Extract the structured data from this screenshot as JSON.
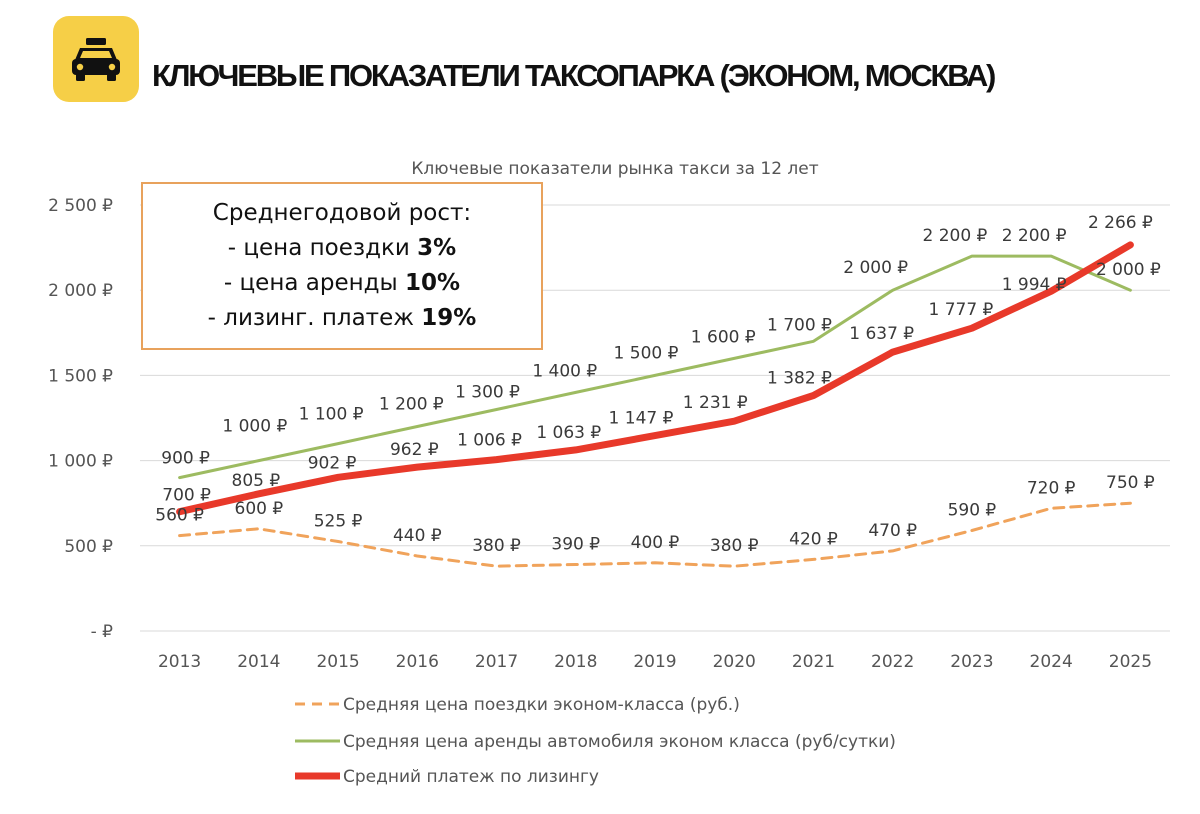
{
  "header": {
    "title": "КЛЮЧЕВЫЕ ПОКАЗАТЕЛИ ТАКСОПАРКА (ЭКОНОМ, МОСКВА)",
    "logo_icon": "taxi-car-icon",
    "logo_color": "#F6CF47"
  },
  "callout": {
    "heading": "Среднегодовой рост:",
    "lines": [
      {
        "label": "- цена поездки ",
        "value": "3%"
      },
      {
        "label": "- цена аренды ",
        "value": "10%"
      },
      {
        "label": "- лизинг. платеж ",
        "value": "19%"
      }
    ]
  },
  "chart_data": {
    "type": "line",
    "title": "Ключевые показатели рынка такси за 12 лет",
    "xlabel": "",
    "ylabel": "",
    "ylim": [
      0,
      2500
    ],
    "y_ticks": [
      0,
      500,
      1000,
      1500,
      2000,
      2500
    ],
    "y_tick_labels": [
      "-  ₽",
      "500 ₽",
      "1 000 ₽",
      "1 500 ₽",
      "2 000 ₽",
      "2 500 ₽"
    ],
    "grid": true,
    "legend_position": "bottom",
    "categories": [
      "2013",
      "2014",
      "2015",
      "2016",
      "2017",
      "2018",
      "2019",
      "2020",
      "2021",
      "2022",
      "2023",
      "2024",
      "2025"
    ],
    "series": [
      {
        "name": "Средняя цена поездки эконом-класса (руб.)",
        "color": "#F0A35B",
        "style": "dashed",
        "values": [
          560,
          600,
          525,
          440,
          380,
          390,
          400,
          380,
          420,
          470,
          590,
          720,
          750
        ],
        "labels": [
          "560 ₽",
          "600 ₽",
          "525 ₽",
          "440 ₽",
          "380 ₽",
          "390 ₽",
          "400 ₽",
          "380 ₽",
          "420 ₽",
          "470 ₽",
          "590 ₽",
          "720 ₽",
          "750 ₽"
        ]
      },
      {
        "name": "Средняя цена аренды автомобиля эконом класса (руб/сутки)",
        "color": "#9DBB61",
        "style": "solid",
        "values": [
          900,
          1000,
          1100,
          1200,
          1300,
          1400,
          1500,
          1600,
          1700,
          2000,
          2200,
          2200,
          2000
        ],
        "labels": [
          "900 ₽",
          "1 000 ₽",
          "1 100 ₽",
          "1 200 ₽",
          "1 300 ₽",
          "1 400 ₽",
          "1 500 ₽",
          "1 600 ₽",
          "1 700 ₽",
          "2 000 ₽",
          "2 200 ₽",
          "2 200 ₽",
          "2 000 ₽"
        ]
      },
      {
        "name": "Средний платеж по лизингу",
        "color": "#E8392A",
        "style": "thick",
        "values": [
          700,
          805,
          902,
          962,
          1006,
          1063,
          1147,
          1231,
          1382,
          1637,
          1777,
          1994,
          2266
        ],
        "labels": [
          "700 ₽",
          "805 ₽",
          "902 ₽",
          "962 ₽",
          "1 006 ₽",
          "1 063 ₽",
          "1 147 ₽",
          "1 231 ₽",
          "1 382 ₽",
          "1 637 ₽",
          "1 777 ₽",
          "1 994 ₽",
          "2 266 ₽"
        ]
      }
    ]
  }
}
